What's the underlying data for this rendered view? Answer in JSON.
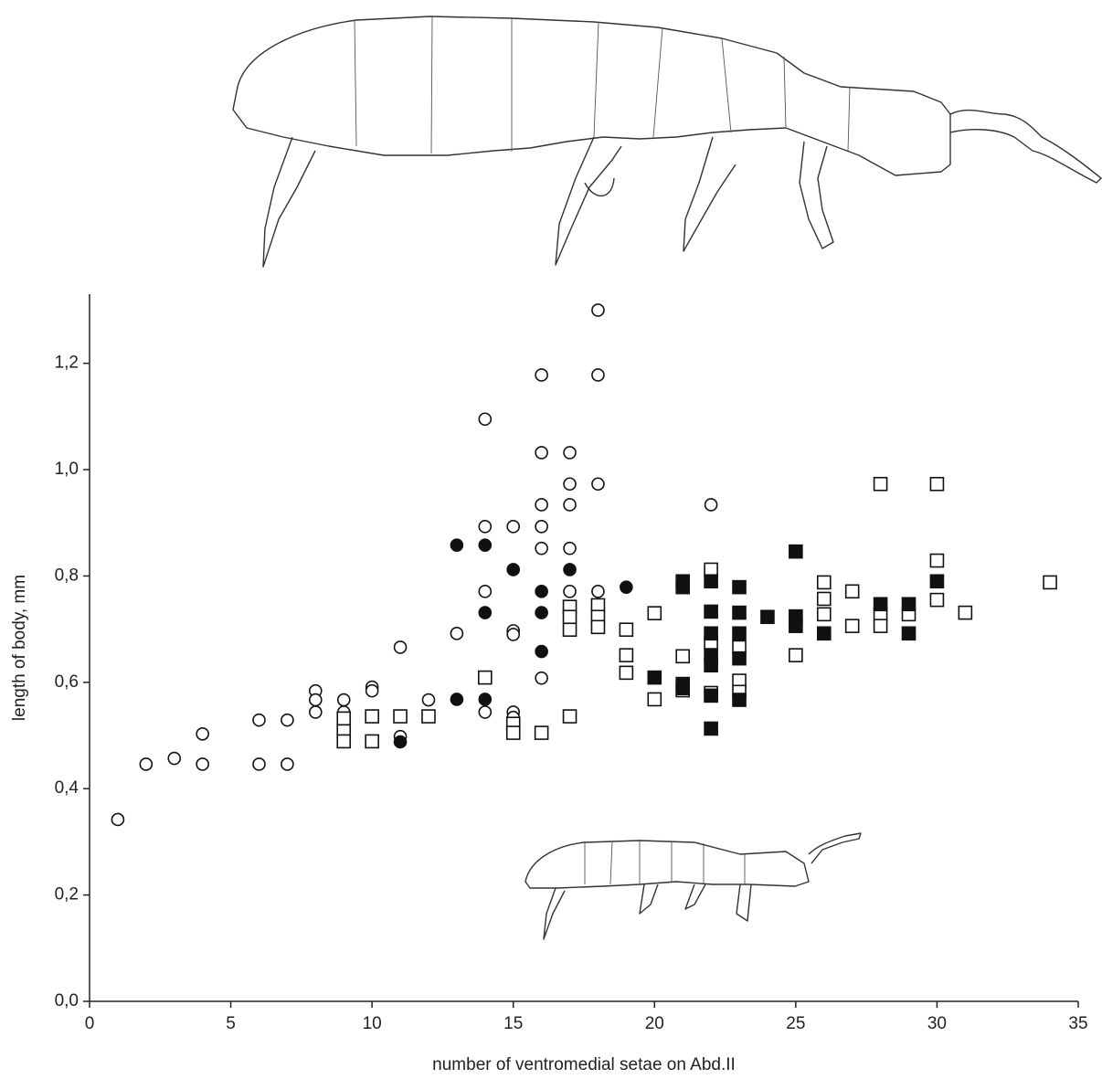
{
  "chart_data": {
    "type": "scatter",
    "x_label": "number of ventromedial setae on Abd.II",
    "y_label": "length of body, mm",
    "xlim": [
      0,
      35
    ],
    "ylim": [
      0,
      1.33
    ],
    "xticks": [
      0,
      5,
      10,
      15,
      20,
      25,
      30,
      35
    ],
    "yticks": [
      {
        "value": 0,
        "label": "0,0"
      },
      {
        "value": 0.2,
        "label": "0,2"
      },
      {
        "value": 0.4,
        "label": "0,4"
      },
      {
        "value": 0.6,
        "label": "0,6"
      },
      {
        "value": 0.8,
        "label": "0,8"
      },
      {
        "value": 1.0,
        "label": "1,0"
      },
      {
        "value": 1.2,
        "label": "1,2"
      }
    ],
    "series": [
      {
        "marker": "circle",
        "color": "#ffffff",
        "x": [
          1,
          2,
          3,
          4,
          4,
          6,
          6,
          7,
          7,
          8,
          8,
          8,
          9,
          9,
          10,
          10,
          11,
          11,
          12,
          13,
          14,
          14,
          14,
          14,
          15,
          15,
          15,
          15,
          15,
          16,
          16,
          16,
          16,
          16,
          16,
          17,
          17,
          17,
          17,
          17,
          18,
          18,
          18,
          18,
          22
        ],
        "values": [
          0.342,
          0.446,
          0.457,
          0.503,
          0.446,
          0.529,
          0.446,
          0.529,
          0.446,
          0.584,
          0.567,
          0.544,
          0.567,
          0.544,
          0.591,
          0.584,
          0.666,
          0.498,
          0.567,
          0.692,
          1.095,
          0.893,
          0.771,
          0.544,
          0.893,
          0.697,
          0.69,
          0.544,
          0.534,
          1.178,
          1.032,
          0.934,
          0.893,
          0.852,
          0.608,
          1.032,
          0.973,
          0.934,
          0.852,
          0.771,
          1.3,
          1.178,
          0.973,
          0.771,
          0.934
        ]
      },
      {
        "marker": "circle",
        "color": "#111111",
        "x": [
          11,
          13,
          13,
          14,
          14,
          14,
          15,
          16,
          16,
          16,
          17,
          17,
          18,
          19
        ],
        "values": [
          0.488,
          0.858,
          0.568,
          0.858,
          0.731,
          0.568,
          0.812,
          0.771,
          0.731,
          0.658,
          0.812,
          0.731,
          0.731,
          0.779
        ]
      },
      {
        "marker": "square",
        "color": "#ffffff",
        "x": [
          9,
          9,
          9,
          10,
          10,
          11,
          12,
          14,
          15,
          15,
          16,
          17,
          17,
          17,
          17,
          18,
          18,
          18,
          19,
          19,
          19,
          20,
          20,
          21,
          21,
          22,
          22,
          22,
          23,
          23,
          23,
          25,
          26,
          26,
          26,
          27,
          27,
          28,
          28,
          28,
          29,
          30,
          30,
          30,
          31,
          34
        ],
        "values": [
          0.532,
          0.508,
          0.489,
          0.536,
          0.489,
          0.536,
          0.536,
          0.609,
          0.522,
          0.505,
          0.505,
          0.699,
          0.742,
          0.723,
          0.536,
          0.745,
          0.723,
          0.704,
          0.699,
          0.651,
          0.618,
          0.73,
          0.568,
          0.649,
          0.585,
          0.812,
          0.675,
          0.58,
          0.666,
          0.603,
          0.582,
          0.651,
          0.788,
          0.757,
          0.728,
          0.771,
          0.706,
          0.973,
          0.728,
          0.706,
          0.728,
          0.973,
          0.829,
          0.755,
          0.731,
          0.788
        ]
      },
      {
        "marker": "square",
        "color": "#111111",
        "x": [
          20,
          21,
          21,
          21,
          21,
          22,
          22,
          22,
          22,
          22,
          22,
          22,
          23,
          23,
          23,
          23,
          23,
          24,
          25,
          25,
          25,
          26,
          28,
          29,
          29,
          30
        ],
        "values": [
          0.609,
          0.79,
          0.779,
          0.597,
          0.589,
          0.79,
          0.733,
          0.692,
          0.651,
          0.632,
          0.575,
          0.513,
          0.779,
          0.731,
          0.692,
          0.645,
          0.567,
          0.723,
          0.846,
          0.724,
          0.706,
          0.692,
          0.747,
          0.747,
          0.692,
          0.79
        ]
      }
    ]
  }
}
